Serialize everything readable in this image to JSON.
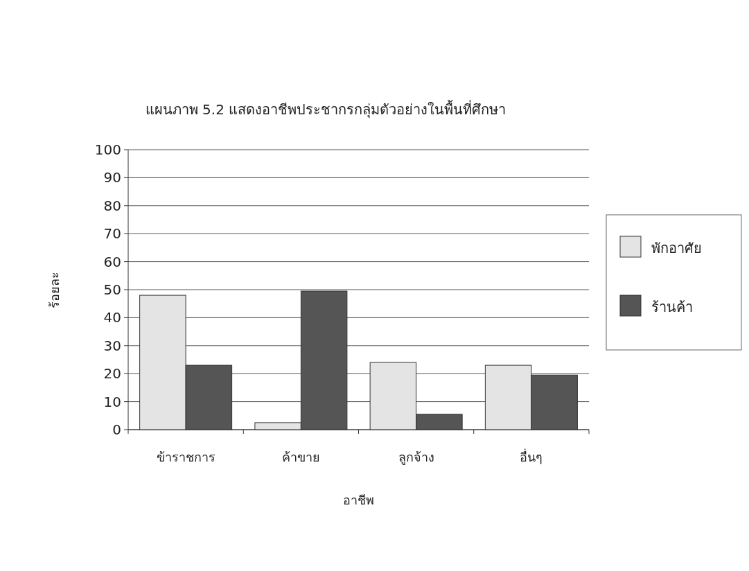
{
  "chart_data": {
    "type": "bar",
    "title": "แผนภาพ 5.2    แสดงอาชีพประชากรกลุ่มตัวอย่างในพื้นที่ศึกษา",
    "xlabel": "อาชีพ",
    "ylabel": "ร้อยละ",
    "categories": [
      "ข้าราชการ",
      "ค้าขาย",
      "ลูกจ้าง",
      "อื่นๆ"
    ],
    "series": [
      {
        "name": "พักอาศัย",
        "color": "#e4e4e4",
        "values": [
          48,
          2.5,
          24,
          23
        ]
      },
      {
        "name": "ร้านค้า",
        "color": "#555555",
        "values": [
          23,
          49.5,
          5.5,
          19.5
        ]
      }
    ],
    "ylim": [
      0,
      100
    ],
    "yticks": [
      0,
      10,
      20,
      30,
      40,
      50,
      60,
      70,
      80,
      90,
      100
    ],
    "grid": "y",
    "legend": "right"
  }
}
